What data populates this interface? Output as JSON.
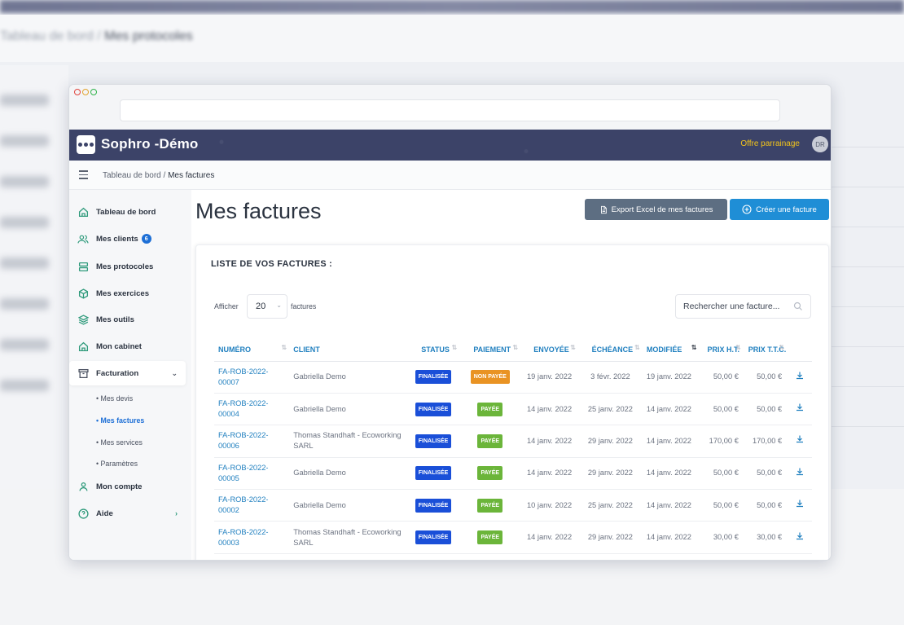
{
  "app": {
    "title": "Sophro -Démo",
    "referral": "Offre parrainage",
    "avatar": "DR"
  },
  "background_crumb": {
    "root": "Tableau de bord",
    "current": "Mes protocoles"
  },
  "breadcrumb": {
    "root": "Tableau de bord",
    "separator": "/",
    "current": "Mes factures"
  },
  "sidebar": {
    "items": [
      {
        "label": "Tableau de bord",
        "icon": "home-icon"
      },
      {
        "label": "Mes clients",
        "icon": "users-icon",
        "badge": "6"
      },
      {
        "label": "Mes protocoles",
        "icon": "server-icon"
      },
      {
        "label": "Mes exercices",
        "icon": "box-icon"
      },
      {
        "label": "Mes outils",
        "icon": "layers-icon"
      },
      {
        "label": "Mon cabinet",
        "icon": "home-icon"
      },
      {
        "label": "Facturation",
        "icon": "archive-icon"
      },
      {
        "label": "Mon compte",
        "icon": "user-icon"
      },
      {
        "label": "Aide",
        "icon": "help-circle-icon"
      }
    ],
    "billing_sub": [
      "Mes devis",
      "Mes factures",
      "Mes services",
      "Paramètres"
    ]
  },
  "page": {
    "title": "Mes factures",
    "export_button": "Export Excel de mes factures",
    "create_button": "Créer une facture"
  },
  "card": {
    "title": "LISTE DE VOS FACTURES :",
    "show_label": "Afficher",
    "per_page": "20",
    "per_page_suffix": "factures",
    "search_placeholder": "Rechercher une facture..."
  },
  "table": {
    "columns": [
      "NUMÉRO",
      "CLIENT",
      "STATUS",
      "PAIEMENT",
      "ENVOYÉE",
      "ÉCHÉANCE",
      "MODIFIÉE",
      "PRIX H.T.",
      "PRIX T.T.C."
    ],
    "rows": [
      {
        "number": "FA-ROB-2022-00007",
        "client": "Gabriella Demo",
        "status": "FINALISÉE",
        "payment": "NON PAYÉE",
        "sent": "19 janv. 2022",
        "due": "3 févr. 2022",
        "modified": "19 janv. 2022",
        "ht": "50,00 €",
        "ttc": "50,00 €"
      },
      {
        "number": "FA-ROB-2022-00004",
        "client": "Gabriella Demo",
        "status": "FINALISÉE",
        "payment": "PAYÉE",
        "sent": "14 janv. 2022",
        "due": "25 janv. 2022",
        "modified": "14 janv. 2022",
        "ht": "50,00 €",
        "ttc": "50,00 €"
      },
      {
        "number": "FA-ROB-2022-00006",
        "client": "Thomas Standhaft - Ecoworking SARL",
        "status": "FINALISÉE",
        "payment": "PAYÉE",
        "sent": "14 janv. 2022",
        "due": "29 janv. 2022",
        "modified": "14 janv. 2022",
        "ht": "170,00 €",
        "ttc": "170,00 €"
      },
      {
        "number": "FA-ROB-2022-00005",
        "client": "Gabriella Demo",
        "status": "FINALISÉE",
        "payment": "PAYÉE",
        "sent": "14 janv. 2022",
        "due": "29 janv. 2022",
        "modified": "14 janv. 2022",
        "ht": "50,00 €",
        "ttc": "50,00 €"
      },
      {
        "number": "FA-ROB-2022-00002",
        "client": "Gabriella Demo",
        "status": "FINALISÉE",
        "payment": "PAYÉE",
        "sent": "10 janv. 2022",
        "due": "25 janv. 2022",
        "modified": "14 janv. 2022",
        "ht": "50,00 €",
        "ttc": "50,00 €"
      },
      {
        "number": "FA-ROB-2022-00003",
        "client": "Thomas Standhaft - Ecoworking SARL",
        "status": "FINALISÉE",
        "payment": "PAYÉE",
        "sent": "14 janv. 2022",
        "due": "29 janv. 2022",
        "modified": "14 janv. 2022",
        "ht": "30,00 €",
        "ttc": "30,00 €"
      }
    ]
  },
  "colors": {
    "header": "#3c4368",
    "accent": "#1f8ed6",
    "status_finalised": "#1a4fd8",
    "paid": "#6bb53a",
    "unpaid": "#e99323",
    "icon_green": "#2e9a7b"
  }
}
